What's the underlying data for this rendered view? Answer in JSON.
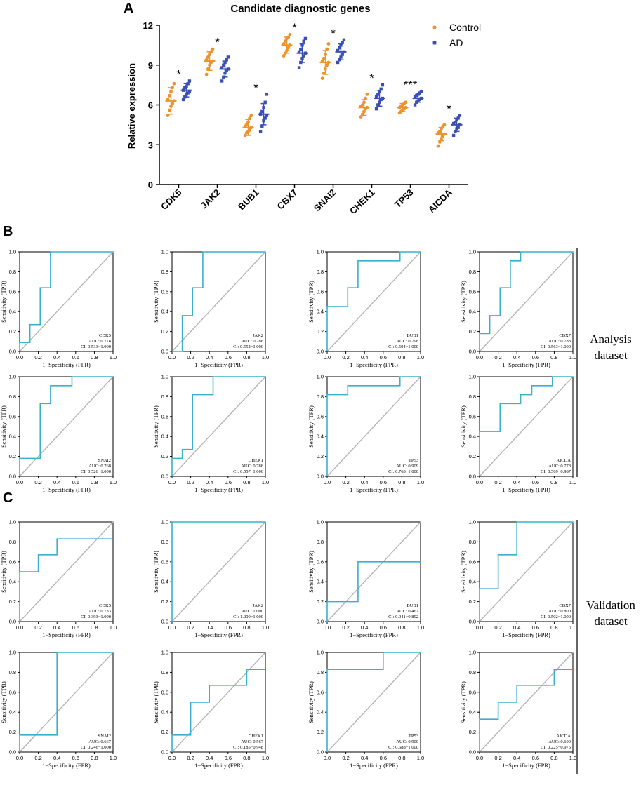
{
  "colors": {
    "control": "#f0922b",
    "ad": "#3a4fb3",
    "roc": "#3bb0cc",
    "diagonal": "#b4b4b4"
  },
  "panel_labels": [
    "A",
    "B",
    "C"
  ],
  "side_labels": {
    "analysis": [
      "Analysis",
      "dataset"
    ],
    "validation": [
      "Validation",
      "dataset"
    ]
  },
  "chart_data": [
    {
      "id": "A",
      "type": "scatter",
      "title": "Candidate diagnostic genes",
      "xlabel": "",
      "ylabel": "Relative expression",
      "ylim": [
        0,
        12
      ],
      "yticks": [
        "0",
        "3",
        "6",
        "9",
        "12"
      ],
      "categories": [
        "CDK5",
        "JAK2",
        "BUB1",
        "CBX7",
        "SNAI2",
        "CHEK1",
        "TP53",
        "AICDA"
      ],
      "significance": [
        "*",
        "*",
        "*",
        "*",
        "*",
        "*",
        "***",
        "*"
      ],
      "legend": {
        "position": "top-right",
        "entries": [
          "Control",
          "AD"
        ]
      },
      "series": [
        {
          "name": "Control",
          "mean": [
            6.3,
            9.3,
            4.3,
            10.5,
            9.2,
            5.8,
            5.8,
            3.8
          ],
          "sd": [
            1.0,
            0.7,
            0.6,
            0.6,
            0.9,
            0.6,
            0.3,
            0.5
          ],
          "points": [
            [
              5.2,
              5.6,
              5.9,
              6.1,
              6.3,
              6.4,
              6.7,
              7.0,
              7.3,
              7.6
            ],
            [
              8.3,
              8.7,
              9.0,
              9.2,
              9.3,
              9.4,
              9.6,
              9.8,
              10.0,
              10.2
            ],
            [
              3.7,
              3.9,
              4.0,
              4.1,
              4.3,
              4.4,
              4.5,
              4.7,
              5.0,
              5.2
            ],
            [
              9.7,
              9.9,
              10.1,
              10.3,
              10.5,
              10.6,
              10.8,
              11.0,
              11.1,
              11.3
            ],
            [
              8.0,
              8.4,
              8.7,
              9.0,
              9.2,
              9.3,
              9.5,
              9.8,
              10.2,
              10.6
            ],
            [
              5.1,
              5.3,
              5.5,
              5.7,
              5.8,
              5.9,
              6.0,
              6.2,
              6.5,
              6.8
            ],
            [
              5.4,
              5.5,
              5.6,
              5.7,
              5.8,
              5.8,
              5.9,
              6.0,
              6.1,
              6.2
            ],
            [
              2.9,
              3.2,
              3.4,
              3.6,
              3.8,
              3.9,
              4.0,
              4.2,
              4.4,
              4.5
            ]
          ]
        },
        {
          "name": "AD",
          "mean": [
            7.1,
            8.7,
            5.3,
            9.9,
            10.0,
            6.5,
            6.5,
            4.5
          ],
          "sd": [
            0.5,
            0.6,
            0.8,
            0.7,
            0.6,
            0.6,
            0.3,
            0.5
          ],
          "points": [
            [
              6.4,
              6.6,
              6.8,
              6.9,
              7.0,
              7.1,
              7.3,
              7.4,
              7.6,
              7.8
            ],
            [
              7.8,
              8.1,
              8.4,
              8.6,
              8.7,
              8.8,
              9.0,
              9.2,
              9.4,
              9.6
            ],
            [
              4.0,
              4.4,
              4.8,
              5.0,
              5.2,
              5.3,
              5.5,
              5.8,
              6.2,
              6.8
            ],
            [
              8.8,
              9.2,
              9.5,
              9.7,
              9.9,
              10.0,
              10.2,
              10.5,
              10.8,
              11.0
            ],
            [
              9.2,
              9.4,
              9.6,
              9.8,
              10.0,
              10.1,
              10.3,
              10.5,
              10.7,
              10.9
            ],
            [
              5.7,
              6.0,
              6.2,
              6.4,
              6.5,
              6.6,
              6.8,
              7.0,
              7.2,
              7.5
            ],
            [
              6.0,
              6.2,
              6.3,
              6.4,
              6.5,
              6.6,
              6.7,
              6.8,
              6.9,
              7.0
            ],
            [
              3.7,
              4.0,
              4.2,
              4.3,
              4.5,
              4.6,
              4.7,
              4.9,
              5.0,
              5.2
            ]
          ]
        }
      ]
    },
    {
      "id": "B",
      "type": "line",
      "subtype": "roc",
      "xlabel": "1−Specificity (FPR)",
      "ylabel": "Sensitivity (TPR)",
      "xlim": [
        0,
        1
      ],
      "ylim": [
        0,
        1
      ],
      "ticks": [
        "0.0",
        "0.2",
        "0.4",
        "0.6",
        "0.8",
        "1.0"
      ],
      "plots": [
        {
          "gene": "CDK5",
          "auc": "AUC: 0.778",
          "ci": "CI: 0.533−1.000",
          "x": [
            0,
            0,
            0.11,
            0.11,
            0.22,
            0.22,
            0.33,
            0.33,
            1
          ],
          "y": [
            0,
            0.09,
            0.09,
            0.27,
            0.27,
            0.64,
            0.64,
            1,
            1
          ]
        },
        {
          "gene": "JAK2",
          "auc": "AUC: 0.788",
          "ci": "CI: 0.552−1.000",
          "x": [
            0,
            0.11,
            0.11,
            0.22,
            0.22,
            0.33,
            0.33,
            1
          ],
          "y": [
            0,
            0,
            0.36,
            0.36,
            0.64,
            0.64,
            1,
            1
          ]
        },
        {
          "gene": "BUB1",
          "auc": "AUC: 0.798",
          "ci": "CI: 0.594−1.000",
          "x": [
            0,
            0,
            0.22,
            0.22,
            0.33,
            0.33,
            0.78,
            0.78,
            1
          ],
          "y": [
            0,
            0.45,
            0.45,
            0.64,
            0.64,
            0.91,
            0.91,
            1,
            1
          ]
        },
        {
          "gene": "CBX7",
          "auc": "AUC: 0.788",
          "ci": "CI: 0.563−1.000",
          "x": [
            0,
            0,
            0.11,
            0.11,
            0.22,
            0.22,
            0.33,
            0.33,
            0.44,
            0.44,
            1
          ],
          "y": [
            0,
            0.18,
            0.18,
            0.36,
            0.36,
            0.64,
            0.64,
            0.91,
            0.91,
            1,
            1
          ]
        },
        {
          "gene": "SNAI2",
          "auc": "AUC: 0.768",
          "ci": "CI: 0.526−1.000",
          "x": [
            0,
            0,
            0.22,
            0.22,
            0.33,
            0.33,
            0.56,
            0.56,
            1
          ],
          "y": [
            0,
            0.18,
            0.18,
            0.73,
            0.73,
            0.91,
            0.91,
            1,
            1
          ]
        },
        {
          "gene": "CHEK1",
          "auc": "AUC: 0.788",
          "ci": "CI: 0.557−1.000",
          "x": [
            0,
            0,
            0.11,
            0.11,
            0.22,
            0.22,
            0.44,
            0.44,
            1
          ],
          "y": [
            0,
            0.18,
            0.18,
            0.27,
            0.27,
            0.82,
            0.82,
            1,
            1
          ]
        },
        {
          "gene": "TP53",
          "auc": "AUC: 0.909",
          "ci": "CI: 0.763−1.000",
          "x": [
            0,
            0,
            0.22,
            0.22,
            0.78,
            0.78,
            1
          ],
          "y": [
            0,
            0.82,
            0.82,
            0.91,
            0.91,
            1,
            1
          ]
        },
        {
          "gene": "AICDA",
          "auc": "AUC: 0.778",
          "ci": "CI: 0.569−0.987",
          "x": [
            0,
            0,
            0.22,
            0.22,
            0.44,
            0.44,
            0.56,
            0.56,
            0.78,
            0.78,
            1
          ],
          "y": [
            0,
            0.45,
            0.45,
            0.73,
            0.73,
            0.82,
            0.82,
            0.91,
            0.91,
            1,
            1
          ]
        }
      ]
    },
    {
      "id": "C",
      "type": "line",
      "subtype": "roc",
      "xlabel": "1−Specificity (FPR)",
      "ylabel": "Sensitivity (TPR)",
      "xlim": [
        0,
        1
      ],
      "ylim": [
        0,
        1
      ],
      "ticks": [
        "0.0",
        "0.2",
        "0.4",
        "0.6",
        "0.8",
        "1.0"
      ],
      "plots": [
        {
          "gene": "CDK5",
          "auc": "AUC: 0.733",
          "ci": "CI: 0.393−1.000",
          "x": [
            0,
            0,
            0.2,
            0.2,
            0.4,
            0.4,
            1
          ],
          "y": [
            0,
            0.5,
            0.5,
            0.67,
            0.67,
            0.83,
            0.83
          ]
        },
        {
          "gene": "JAK2",
          "auc": "AUC: 1.000",
          "ci": "CI: 1.000−1.000",
          "x": [
            0,
            0,
            1
          ],
          "y": [
            0,
            1,
            1
          ]
        },
        {
          "gene": "BUB1",
          "auc": "AUC: 0.467",
          "ci": "CI: 0.041−0.892",
          "x": [
            0,
            0,
            0.33,
            0.33,
            1
          ],
          "y": [
            0,
            0.2,
            0.2,
            0.6,
            0.6
          ]
        },
        {
          "gene": "CBX7",
          "auc": "AUC: 0.800",
          "ci": "CI: 0.502−1.000",
          "x": [
            0,
            0,
            0.2,
            0.2,
            0.4,
            0.4,
            1
          ],
          "y": [
            0,
            0.33,
            0.33,
            0.67,
            0.67,
            1,
            1
          ]
        },
        {
          "gene": "SNAI2",
          "auc": "AUC: 0.667",
          "ci": "CI: 0.246−1.000",
          "x": [
            0,
            0,
            0.4,
            0.4,
            1
          ],
          "y": [
            0,
            0.17,
            0.17,
            1,
            1
          ]
        },
        {
          "gene": "CHEK1",
          "auc": "AUC: 0.567",
          "ci": "CI: 0.185−0.948",
          "x": [
            0,
            0,
            0.2,
            0.2,
            0.4,
            0.4,
            0.8,
            0.8,
            1
          ],
          "y": [
            0,
            0.17,
            0.17,
            0.5,
            0.5,
            0.67,
            0.67,
            0.83,
            0.83
          ]
        },
        {
          "gene": "TP53",
          "auc": "AUC: 0.900",
          "ci": "CI: 0.688−1.000",
          "x": [
            0,
            0,
            0.6,
            0.6,
            1
          ],
          "y": [
            0,
            0.83,
            0.83,
            1,
            1
          ]
        },
        {
          "gene": "AICDA",
          "auc": "AUC: 0.600",
          "ci": "CI: 0.225−0.975",
          "x": [
            0,
            0,
            0.2,
            0.2,
            0.4,
            0.4,
            0.8,
            0.8,
            1
          ],
          "y": [
            0,
            0.33,
            0.33,
            0.5,
            0.5,
            0.67,
            0.67,
            0.83,
            0.83
          ]
        }
      ]
    }
  ]
}
